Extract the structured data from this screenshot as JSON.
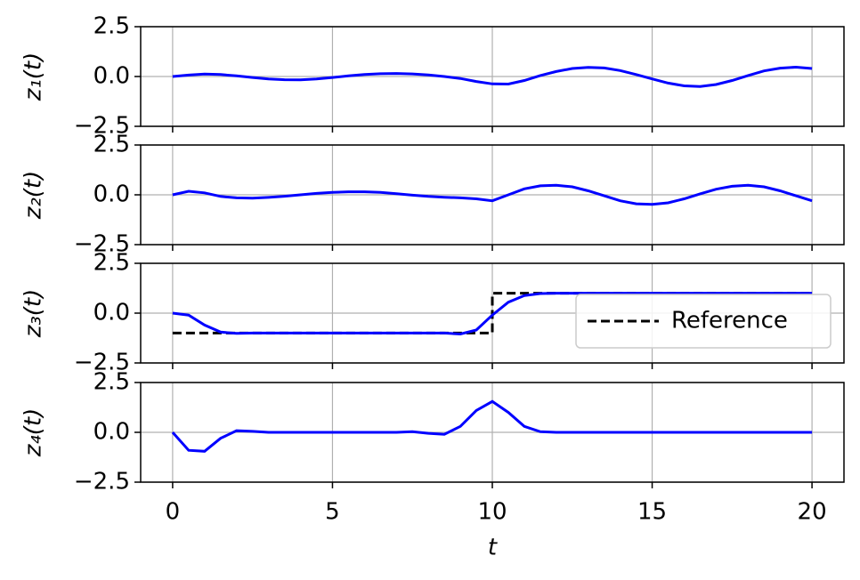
{
  "chart_data": [
    {
      "type": "line",
      "ylabel": "z₁(t)",
      "xlim": [
        -1,
        21
      ],
      "ylim": [
        -2.5,
        2.5
      ],
      "xticks": [
        0,
        5,
        10,
        15,
        20
      ],
      "yticks": [
        {
          "value": -2.5,
          "label": "−2.5"
        },
        {
          "value": 0,
          "label": "0.0"
        },
        {
          "value": 2.5,
          "label": "2.5"
        }
      ],
      "grid": true,
      "series": [
        {
          "color": "#0000ff",
          "x": [
            0,
            0.5,
            1,
            1.5,
            2,
            2.5,
            3,
            3.5,
            4,
            4.5,
            5,
            5.5,
            6,
            6.5,
            7,
            7.5,
            8,
            8.5,
            9,
            9.5,
            10,
            10.5,
            11,
            11.5,
            12,
            12.5,
            13,
            13.5,
            14,
            14.5,
            15,
            15.5,
            16,
            16.5,
            17,
            17.5,
            18,
            18.5,
            19,
            19.5,
            20
          ],
          "values": [
            0,
            0.07,
            0.12,
            0.1,
            0.03,
            -0.05,
            -0.12,
            -0.16,
            -0.17,
            -0.12,
            -0.05,
            0.03,
            0.1,
            0.14,
            0.15,
            0.13,
            0.08,
            0,
            -0.1,
            -0.25,
            -0.37,
            -0.38,
            -0.2,
            0.05,
            0.25,
            0.4,
            0.46,
            0.43,
            0.3,
            0.1,
            -0.12,
            -0.33,
            -0.47,
            -0.5,
            -0.4,
            -0.2,
            0.05,
            0.28,
            0.42,
            0.47,
            0.4
          ]
        }
      ]
    },
    {
      "type": "line",
      "ylabel": "z₂(t)",
      "xlim": [
        -1,
        21
      ],
      "ylim": [
        -2.5,
        2.5
      ],
      "xticks": [
        0,
        5,
        10,
        15,
        20
      ],
      "yticks": [
        {
          "value": -2.5,
          "label": "−2.5"
        },
        {
          "value": 0,
          "label": "0.0"
        },
        {
          "value": 2.5,
          "label": "2.5"
        }
      ],
      "grid": true,
      "series": [
        {
          "color": "#0000ff",
          "x": [
            0,
            0.5,
            1,
            1.5,
            2,
            2.5,
            3,
            3.5,
            4,
            4.5,
            5,
            5.5,
            6,
            6.5,
            7,
            7.5,
            8,
            8.5,
            9,
            9.5,
            10,
            10.5,
            11,
            11.5,
            12,
            12.5,
            13,
            13.5,
            14,
            14.5,
            15,
            15.5,
            16,
            16.5,
            17,
            17.5,
            18,
            18.5,
            19,
            19.5,
            20
          ],
          "values": [
            0,
            0.18,
            0.1,
            -0.08,
            -0.15,
            -0.17,
            -0.13,
            -0.07,
            0,
            0.07,
            0.12,
            0.15,
            0.15,
            0.12,
            0.06,
            -0.02,
            -0.08,
            -0.12,
            -0.15,
            -0.2,
            -0.3,
            0,
            0.3,
            0.45,
            0.48,
            0.4,
            0.2,
            -0.05,
            -0.3,
            -0.45,
            -0.48,
            -0.4,
            -0.2,
            0.05,
            0.28,
            0.43,
            0.48,
            0.4,
            0.2,
            -0.05,
            -0.3
          ]
        }
      ]
    },
    {
      "type": "line",
      "ylabel": "z₃(t)",
      "xlim": [
        -1,
        21
      ],
      "ylim": [
        -2.5,
        2.5
      ],
      "xticks": [
        0,
        5,
        10,
        15,
        20
      ],
      "yticks": [
        {
          "value": -2.5,
          "label": "−2.5"
        },
        {
          "value": 0,
          "label": "0.0"
        },
        {
          "value": 2.5,
          "label": "2.5"
        }
      ],
      "grid": true,
      "legend": "lower right",
      "series": [
        {
          "name": "Reference",
          "color": "#000000",
          "dashed": true,
          "x": [
            0,
            10,
            10,
            20
          ],
          "values": [
            -1,
            -1,
            1,
            1
          ]
        },
        {
          "color": "#0000ff",
          "x": [
            0,
            0.5,
            1,
            1.5,
            2,
            2.5,
            3,
            3.5,
            4,
            4.5,
            5,
            5.5,
            6,
            6.5,
            7,
            7.5,
            8,
            8.5,
            9,
            9.5,
            10,
            10.5,
            11,
            11.5,
            12,
            12.5,
            13,
            13.5,
            14,
            14.5,
            15,
            15.5,
            16,
            16.5,
            17,
            17.5,
            18,
            18.5,
            19,
            19.5,
            20
          ],
          "values": [
            0,
            -0.1,
            -0.6,
            -0.95,
            -1.02,
            -1,
            -1,
            -1,
            -1,
            -1,
            -1,
            -1,
            -1,
            -1,
            -1,
            -1,
            -1,
            -1,
            -1.05,
            -0.85,
            -0.1,
            0.55,
            0.88,
            0.98,
            1,
            1,
            1,
            1,
            1,
            1,
            1,
            1,
            1,
            1,
            1,
            1,
            1,
            1,
            1,
            1,
            1
          ]
        }
      ]
    },
    {
      "type": "line",
      "ylabel": "z₄(t)",
      "xlabel": "t",
      "xlim": [
        -1,
        21
      ],
      "ylim": [
        -2.5,
        2.5
      ],
      "xticks": [
        0,
        5,
        10,
        15,
        20
      ],
      "yticks": [
        {
          "value": -2.5,
          "label": "−2.5"
        },
        {
          "value": 0,
          "label": "0.0"
        },
        {
          "value": 2.5,
          "label": "2.5"
        }
      ],
      "grid": true,
      "series": [
        {
          "color": "#0000ff",
          "x": [
            0,
            0.5,
            1,
            1.5,
            2,
            2.5,
            3,
            3.5,
            4,
            4.5,
            5,
            5.5,
            6,
            6.5,
            7,
            7.5,
            8,
            8.5,
            9,
            9.5,
            10,
            10.5,
            11,
            11.5,
            12,
            12.5,
            13,
            13.5,
            14,
            14.5,
            15,
            15.5,
            16,
            16.5,
            17,
            17.5,
            18,
            18.5,
            19,
            19.5,
            20
          ],
          "values": [
            0,
            -0.9,
            -0.95,
            -0.3,
            0.08,
            0.05,
            0,
            0,
            0,
            0,
            0,
            0,
            0,
            0,
            0,
            0.03,
            -0.05,
            -0.1,
            0.3,
            1.1,
            1.55,
            1,
            0.3,
            0.03,
            0,
            0,
            0,
            0,
            0,
            0,
            0,
            0,
            0,
            0,
            0,
            0,
            0,
            0,
            0,
            0,
            0
          ]
        }
      ]
    }
  ]
}
